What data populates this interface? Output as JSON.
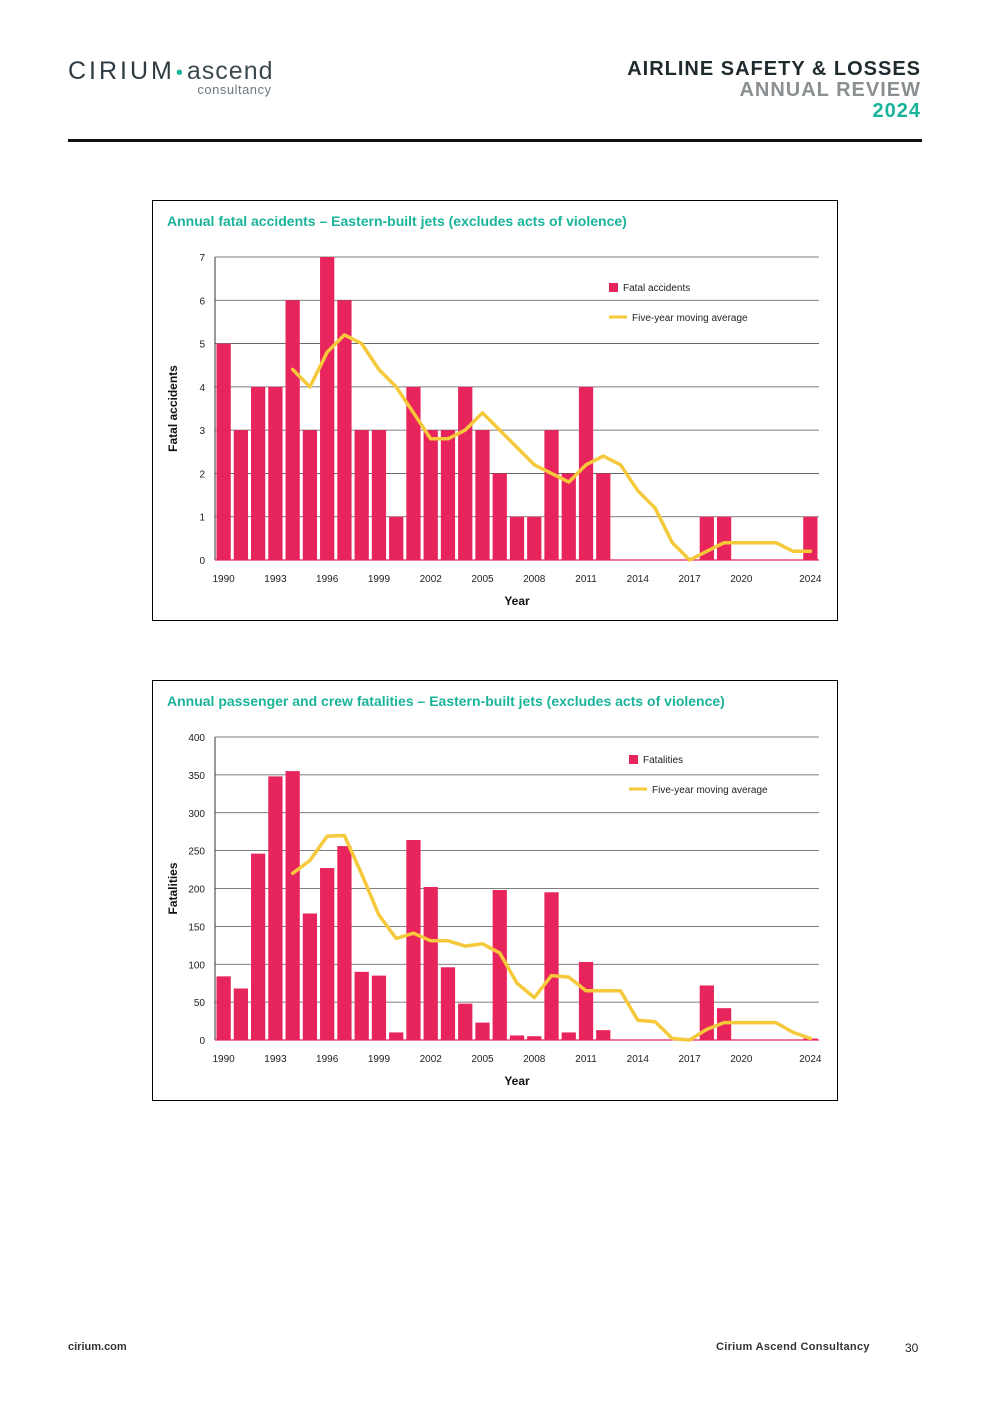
{
  "header": {
    "logo_main": "CIRIUM",
    "logo_ascend": "ascend",
    "logo_sub": "consultancy",
    "title_line1": "AIRLINE SAFETY & LOSSES",
    "title_line2": "ANNUAL REVIEW",
    "title_line3": "2024"
  },
  "colors": {
    "bar": "#e8245c",
    "line": "#f5c93a",
    "title": "#19b49a",
    "grid": "#555555"
  },
  "chart_data": [
    {
      "type": "bar",
      "title": "Annual fatal accidents – Eastern-built jets (excludes acts of violence)",
      "xlabel": "Year",
      "ylabel": "Fatal accidents",
      "ylim": [
        0,
        7
      ],
      "yticks": [
        0,
        1,
        2,
        3,
        4,
        5,
        6,
        7
      ],
      "xticks": [
        "1990",
        "1993",
        "1996",
        "1999",
        "2002",
        "2005",
        "2008",
        "2011",
        "2014",
        "2017",
        "2020",
        "2024"
      ],
      "categories": [
        1990,
        1991,
        1992,
        1993,
        1994,
        1995,
        1996,
        1997,
        1998,
        1999,
        2000,
        2001,
        2002,
        2003,
        2004,
        2005,
        2006,
        2007,
        2008,
        2009,
        2010,
        2011,
        2012,
        2013,
        2014,
        2015,
        2016,
        2017,
        2018,
        2019,
        2020,
        2021,
        2022,
        2023,
        2024
      ],
      "legend": {
        "position": "top-right"
      },
      "series": [
        {
          "name": "Fatal accidents",
          "kind": "bar",
          "values": [
            5,
            3,
            4,
            4,
            6,
            3,
            7,
            6,
            3,
            3,
            1,
            4,
            3,
            3,
            4,
            3,
            2,
            1,
            1,
            3,
            2,
            4,
            2,
            0,
            0,
            0,
            0,
            0,
            1,
            1,
            0,
            0,
            0,
            0,
            1
          ]
        },
        {
          "name": "Five-year moving average",
          "kind": "line",
          "values": [
            null,
            null,
            null,
            null,
            4.4,
            4.0,
            4.8,
            5.2,
            5.0,
            4.4,
            4.0,
            3.4,
            2.8,
            2.8,
            3.0,
            3.4,
            3.0,
            2.6,
            2.2,
            2.0,
            1.8,
            2.2,
            2.4,
            2.2,
            1.6,
            1.2,
            0.4,
            0.0,
            0.2,
            0.4,
            0.4,
            0.4,
            0.4,
            0.2,
            0.2
          ]
        }
      ]
    },
    {
      "type": "bar",
      "title": "Annual passenger and crew fatalities – Eastern-built jets (excludes acts of violence)",
      "xlabel": "Year",
      "ylabel": "Fatalities",
      "ylim": [
        0,
        400
      ],
      "yticks": [
        0,
        50,
        100,
        150,
        200,
        250,
        300,
        350,
        400
      ],
      "xticks": [
        "1990",
        "1993",
        "1996",
        "1999",
        "2002",
        "2005",
        "2008",
        "2011",
        "2014",
        "2017",
        "2020",
        "2024"
      ],
      "categories": [
        1990,
        1991,
        1992,
        1993,
        1994,
        1995,
        1996,
        1997,
        1998,
        1999,
        2000,
        2001,
        2002,
        2003,
        2004,
        2005,
        2006,
        2007,
        2008,
        2009,
        2010,
        2011,
        2012,
        2013,
        2014,
        2015,
        2016,
        2017,
        2018,
        2019,
        2020,
        2021,
        2022,
        2023,
        2024
      ],
      "legend": {
        "position": "top-right"
      },
      "series": [
        {
          "name": "Fatalities",
          "kind": "bar",
          "values": [
            84,
            68,
            246,
            348,
            355,
            167,
            227,
            256,
            90,
            85,
            10,
            264,
            202,
            96,
            48,
            23,
            198,
            6,
            5,
            195,
            10,
            103,
            13,
            0,
            0,
            0,
            0,
            0,
            72,
            42,
            0,
            0,
            0,
            0,
            2
          ]
        },
        {
          "name": "Five-year moving average",
          "kind": "line",
          "values": [
            null,
            null,
            null,
            null,
            220,
            237,
            269,
            270,
            219,
            165,
            134,
            141,
            131,
            131,
            124,
            127,
            115,
            75,
            56,
            85,
            83,
            65,
            65,
            65,
            26,
            24,
            2,
            0,
            14,
            23,
            23,
            23,
            23,
            10,
            2
          ]
        }
      ]
    }
  ],
  "footer": {
    "left": "cirium.com",
    "right": "Cirium Ascend Consultancy",
    "page": "30"
  }
}
